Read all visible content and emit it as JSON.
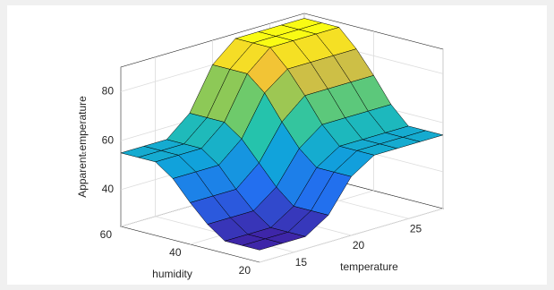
{
  "chart_data": {
    "type": "surface",
    "xlabel": "temperature",
    "ylabel": "humidity",
    "zlabel": "Apparentₜemperature",
    "x": [
      12,
      14,
      16,
      18,
      20,
      22,
      24,
      26,
      28
    ],
    "y": [
      20,
      25,
      30,
      35,
      40,
      45,
      50,
      55,
      60
    ],
    "z": [
      [
        30,
        30,
        30,
        36,
        49,
        55,
        55,
        55,
        55
      ],
      [
        30,
        30,
        30,
        36,
        49,
        55,
        55,
        55,
        55
      ],
      [
        30,
        30,
        30,
        36,
        49,
        55,
        55,
        55,
        55
      ],
      [
        35,
        35,
        35,
        42,
        55,
        62,
        62,
        62,
        62
      ],
      [
        42,
        42,
        42,
        50,
        64,
        72,
        72,
        72,
        72
      ],
      [
        50,
        50,
        50,
        58,
        74,
        81,
        81,
        81,
        81
      ],
      [
        55,
        55,
        55,
        63,
        80,
        88,
        88,
        88,
        88
      ],
      [
        55,
        55,
        55,
        63,
        80,
        88,
        88,
        88,
        88
      ],
      [
        55,
        55,
        55,
        63,
        80,
        88,
        88,
        88,
        88
      ]
    ],
    "xlim": [
      12,
      28
    ],
    "ylim": [
      20,
      60
    ],
    "zlim": [
      25,
      90
    ],
    "xticks": [
      15,
      20,
      25
    ],
    "yticks": [
      20,
      40,
      60
    ],
    "zticks": [
      40,
      60,
      80
    ],
    "colormap": "parula",
    "grid": true,
    "edge_color": "#000000"
  }
}
